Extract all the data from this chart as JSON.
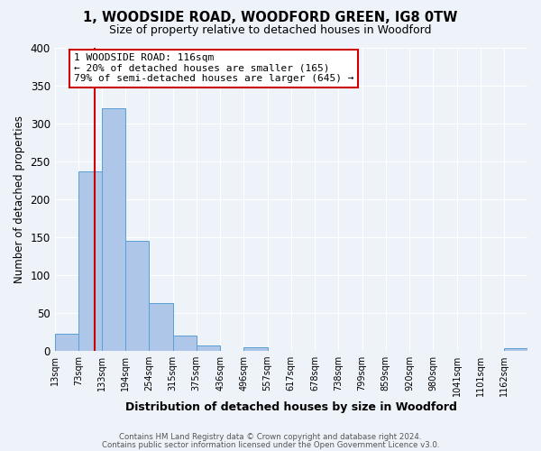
{
  "title": "1, WOODSIDE ROAD, WOODFORD GREEN, IG8 0TW",
  "subtitle": "Size of property relative to detached houses in Woodford",
  "xlabel": "Distribution of detached houses by size in Woodford",
  "ylabel": "Number of detached properties",
  "bin_edges": [
    13,
    73,
    133,
    194,
    254,
    315,
    375,
    436,
    496,
    557,
    617,
    678,
    738,
    799,
    859,
    920,
    980,
    1041,
    1101,
    1162,
    1222
  ],
  "bar_heights": [
    22,
    236,
    320,
    145,
    63,
    20,
    7,
    0,
    4,
    0,
    0,
    0,
    0,
    0,
    0,
    0,
    0,
    0,
    0,
    3
  ],
  "bar_color": "#aec6e8",
  "bar_edge_color": "#5a9fd4",
  "vline_x": 116,
  "vline_color": "#cc0000",
  "ylim": [
    0,
    400
  ],
  "yticks": [
    0,
    50,
    100,
    150,
    200,
    250,
    300,
    350,
    400
  ],
  "annotation_title": "1 WOODSIDE ROAD: 116sqm",
  "annotation_line1": "← 20% of detached houses are smaller (165)",
  "annotation_line2": "79% of semi-detached houses are larger (645) →",
  "annotation_box_color": "#ffffff",
  "annotation_border_color": "#cc0000",
  "bg_color": "#eef2f9",
  "footer_line1": "Contains HM Land Registry data © Crown copyright and database right 2024.",
  "footer_line2": "Contains public sector information licensed under the Open Government Licence v3.0."
}
